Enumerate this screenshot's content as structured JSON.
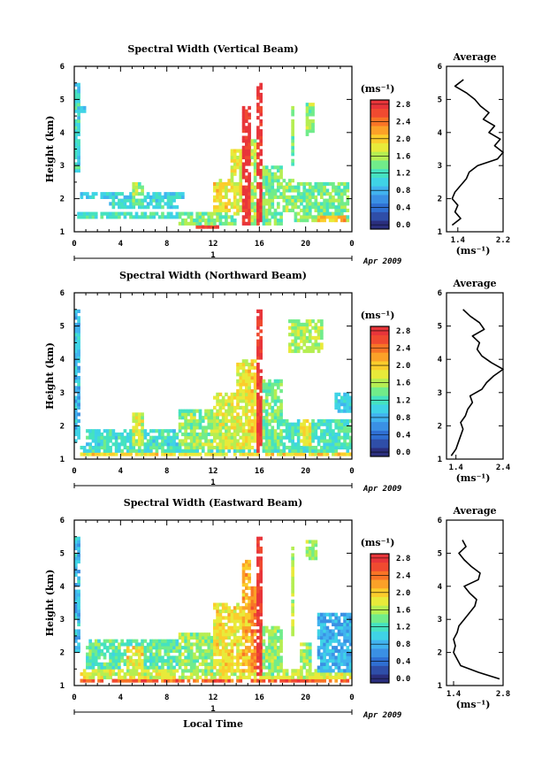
{
  "common": {
    "unit": "(ms⁻¹)",
    "avg_title": "Average",
    "y_axis_label": "Height (km)",
    "x_axis_label": "Local Time",
    "date_label": "Apr 2009",
    "day_label": "1"
  },
  "colorbar": {
    "ticks": [
      "0.0",
      "0.4",
      "0.8",
      "1.2",
      "1.6",
      "2.0",
      "2.4",
      "2.8"
    ],
    "colors": [
      "#2b2f7e",
      "#2f4ea8",
      "#2f6fd2",
      "#3a90e4",
      "#41b3ef",
      "#3fd3e6",
      "#45e2c0",
      "#71ec8a",
      "#b5ee52",
      "#e8ea3a",
      "#fbcd2c",
      "#fba128",
      "#f87426",
      "#f04a30",
      "#e8353a"
    ]
  },
  "chart_data": [
    {
      "type": "heatmap",
      "title": "Spectral Width (Vertical Beam)",
      "ylabel": "Height (km)",
      "xlabel": "",
      "xlim": [
        0,
        24
      ],
      "ylim": [
        1,
        6
      ],
      "x_ticks": [
        "0",
        "4",
        "8",
        "12",
        "16",
        "20",
        "0"
      ],
      "y_ticks": [
        "1",
        "2",
        "3",
        "4",
        "5",
        "6"
      ],
      "colorbar_ticks": [
        "0.0",
        "0.4",
        "0.8",
        "1.2",
        "1.6",
        "2.0",
        "2.4",
        "2.8"
      ],
      "features": [
        {
          "t0": 0.0,
          "t1": 0.6,
          "h0": 2.8,
          "h1": 5.5,
          "v": 1.2
        },
        {
          "t0": 0.2,
          "t1": 0.9,
          "h0": 4.6,
          "h1": 4.8,
          "v": 1.0
        },
        {
          "t0": 0.5,
          "t1": 9.5,
          "h0": 2.05,
          "h1": 2.25,
          "v": 1.1
        },
        {
          "t0": 0.3,
          "t1": 9.0,
          "h0": 1.4,
          "h1": 1.6,
          "v": 1.3
        },
        {
          "t0": 3.0,
          "t1": 9.0,
          "h0": 1.7,
          "h1": 2.0,
          "v": 1.2
        },
        {
          "t0": 5.0,
          "t1": 6.0,
          "h0": 1.8,
          "h1": 2.5,
          "v": 1.6
        },
        {
          "t0": 9.0,
          "t1": 14.0,
          "h0": 1.2,
          "h1": 1.6,
          "v": 1.5
        },
        {
          "t0": 10.5,
          "t1": 13.0,
          "h0": 1.15,
          "h1": 1.25,
          "v": 2.8
        },
        {
          "t0": 12.0,
          "t1": 14.5,
          "h0": 1.6,
          "h1": 2.6,
          "v": 2.0
        },
        {
          "t0": 13.5,
          "t1": 15.0,
          "h0": 1.5,
          "h1": 3.5,
          "v": 1.9
        },
        {
          "t0": 14.5,
          "t1": 15.2,
          "h0": 1.2,
          "h1": 4.8,
          "v": 2.9
        },
        {
          "t0": 15.2,
          "t1": 15.8,
          "h0": 1.2,
          "h1": 3.8,
          "v": 1.7
        },
        {
          "t0": 15.8,
          "t1": 16.3,
          "h0": 1.2,
          "h1": 5.5,
          "v": 2.9
        },
        {
          "t0": 16.3,
          "t1": 18.0,
          "h0": 1.2,
          "h1": 3.0,
          "v": 1.5
        },
        {
          "t0": 18.0,
          "t1": 19.0,
          "h0": 1.6,
          "h1": 2.6,
          "v": 1.6
        },
        {
          "t0": 18.7,
          "t1": 19.1,
          "h0": 3.0,
          "h1": 4.8,
          "v": 1.5
        },
        {
          "t0": 19.0,
          "t1": 23.8,
          "h0": 1.3,
          "h1": 2.5,
          "v": 1.5
        },
        {
          "t0": 20.0,
          "t1": 20.8,
          "h0": 3.9,
          "h1": 4.9,
          "v": 1.6
        },
        {
          "t0": 21.0,
          "t1": 23.5,
          "h0": 1.3,
          "h1": 1.5,
          "v": 2.2
        }
      ],
      "average": {
        "title": "Average",
        "xlabel": "(ms⁻¹)",
        "xlim": [
          1.2,
          2.2
        ],
        "x_ticks": [
          "1.4",
          "2.2"
        ],
        "y_ticks": [
          "1",
          "2",
          "3",
          "4",
          "5",
          "6"
        ],
        "heights": [
          1.2,
          1.4,
          1.6,
          1.8,
          2.0,
          2.2,
          2.4,
          2.6,
          2.8,
          3.0,
          3.2,
          3.4,
          3.6,
          3.8,
          4.0,
          4.2,
          4.4,
          4.6,
          4.8,
          5.0,
          5.2,
          5.4,
          5.6
        ],
        "values": [
          1.3,
          1.45,
          1.35,
          1.4,
          1.3,
          1.35,
          1.45,
          1.55,
          1.6,
          1.75,
          2.1,
          2.2,
          2.05,
          2.15,
          1.95,
          2.05,
          1.85,
          1.95,
          1.8,
          1.7,
          1.55,
          1.35,
          1.5
        ]
      }
    },
    {
      "type": "heatmap",
      "title": "Spectral Width (Northward Beam)",
      "ylabel": "Height (km)",
      "xlabel": "",
      "xlim": [
        0,
        24
      ],
      "ylim": [
        1,
        6
      ],
      "x_ticks": [
        "0",
        "4",
        "8",
        "12",
        "16",
        "20",
        "0"
      ],
      "y_ticks": [
        "1",
        "2",
        "3",
        "4",
        "5",
        "6"
      ],
      "colorbar_ticks": [
        "0.0",
        "0.4",
        "0.8",
        "1.2",
        "1.6",
        "2.0",
        "2.4",
        "2.8"
      ],
      "features": [
        {
          "t0": 0.0,
          "t1": 0.6,
          "h0": 1.5,
          "h1": 5.5,
          "v": 1.0
        },
        {
          "t0": 0.5,
          "t1": 24.0,
          "h0": 1.2,
          "h1": 1.4,
          "v": 1.3
        },
        {
          "t0": 0.5,
          "t1": 24.0,
          "h0": 1.1,
          "h1": 1.2,
          "v": 2.0
        },
        {
          "t0": 1.0,
          "t1": 9.0,
          "h0": 1.4,
          "h1": 1.9,
          "v": 1.2
        },
        {
          "t0": 5.0,
          "t1": 6.0,
          "h0": 1.4,
          "h1": 2.4,
          "v": 1.8
        },
        {
          "t0": 9.0,
          "t1": 13.0,
          "h0": 1.3,
          "h1": 2.5,
          "v": 1.6
        },
        {
          "t0": 12.0,
          "t1": 14.5,
          "h0": 1.3,
          "h1": 3.0,
          "v": 1.8
        },
        {
          "t0": 14.0,
          "t1": 15.0,
          "h0": 1.3,
          "h1": 4.0,
          "v": 1.9
        },
        {
          "t0": 15.0,
          "t1": 15.8,
          "h0": 1.3,
          "h1": 4.0,
          "v": 2.0
        },
        {
          "t0": 15.8,
          "t1": 16.3,
          "h0": 1.2,
          "h1": 5.5,
          "v": 2.9
        },
        {
          "t0": 16.3,
          "t1": 18.0,
          "h0": 1.3,
          "h1": 3.4,
          "v": 1.5
        },
        {
          "t0": 18.0,
          "t1": 24.0,
          "h0": 1.3,
          "h1": 2.2,
          "v": 1.3
        },
        {
          "t0": 19.5,
          "t1": 20.5,
          "h0": 1.4,
          "h1": 2.2,
          "v": 1.9
        },
        {
          "t0": 18.5,
          "t1": 21.5,
          "h0": 4.2,
          "h1": 5.2,
          "v": 1.7
        },
        {
          "t0": 22.5,
          "t1": 24.0,
          "h0": 2.4,
          "h1": 3.0,
          "v": 1.1
        }
      ],
      "average": {
        "title": "Average",
        "xlabel": "(ms⁻¹)",
        "xlim": [
          1.2,
          2.4
        ],
        "x_ticks": [
          "1.4",
          "2.4"
        ],
        "y_ticks": [
          "1",
          "2",
          "3",
          "4",
          "5",
          "6"
        ],
        "heights": [
          1.1,
          1.3,
          1.5,
          1.7,
          1.9,
          2.1,
          2.3,
          2.5,
          2.7,
          2.9,
          3.1,
          3.3,
          3.5,
          3.7,
          3.9,
          4.1,
          4.3,
          4.5,
          4.7,
          4.9,
          5.1,
          5.3,
          5.5
        ],
        "values": [
          1.3,
          1.4,
          1.45,
          1.5,
          1.55,
          1.5,
          1.6,
          1.65,
          1.75,
          1.7,
          1.95,
          2.05,
          2.2,
          2.4,
          2.15,
          1.95,
          1.85,
          1.9,
          1.75,
          2.0,
          1.9,
          1.7,
          1.55
        ]
      }
    },
    {
      "type": "heatmap",
      "title": "Spectral Width (Eastward Beam)",
      "ylabel": "Height (km)",
      "xlabel": "Local Time",
      "xlim": [
        0,
        24
      ],
      "ylim": [
        1,
        6
      ],
      "x_ticks": [
        "0",
        "4",
        "8",
        "12",
        "16",
        "20",
        "0"
      ],
      "y_ticks": [
        "1",
        "2",
        "3",
        "4",
        "5",
        "6"
      ],
      "colorbar_ticks": [
        "0.0",
        "0.4",
        "0.8",
        "1.2",
        "1.6",
        "2.0",
        "2.4",
        "2.8"
      ],
      "features": [
        {
          "t0": 0.0,
          "t1": 0.6,
          "h0": 2.0,
          "h1": 5.5,
          "v": 1.0
        },
        {
          "t0": 0.5,
          "t1": 24.0,
          "h0": 1.1,
          "h1": 1.25,
          "v": 2.6
        },
        {
          "t0": 0.5,
          "t1": 24.0,
          "h0": 1.25,
          "h1": 1.5,
          "v": 1.8
        },
        {
          "t0": 1.0,
          "t1": 9.0,
          "h0": 1.5,
          "h1": 2.4,
          "v": 1.4
        },
        {
          "t0": 4.5,
          "t1": 6.0,
          "h0": 1.5,
          "h1": 2.2,
          "v": 2.0
        },
        {
          "t0": 9.0,
          "t1": 13.0,
          "h0": 1.4,
          "h1": 2.6,
          "v": 1.6
        },
        {
          "t0": 12.0,
          "t1": 14.5,
          "h0": 1.4,
          "h1": 3.5,
          "v": 2.0
        },
        {
          "t0": 14.5,
          "t1": 15.2,
          "h0": 1.4,
          "h1": 4.8,
          "v": 2.2
        },
        {
          "t0": 15.2,
          "t1": 15.8,
          "h0": 1.4,
          "h1": 4.0,
          "v": 2.4
        },
        {
          "t0": 15.8,
          "t1": 16.3,
          "h0": 1.3,
          "h1": 5.5,
          "v": 2.9
        },
        {
          "t0": 16.3,
          "t1": 18.0,
          "h0": 1.3,
          "h1": 2.8,
          "v": 1.6
        },
        {
          "t0": 18.7,
          "t1": 19.1,
          "h0": 2.5,
          "h1": 5.2,
          "v": 1.7
        },
        {
          "t0": 19.5,
          "t1": 20.5,
          "h0": 1.4,
          "h1": 2.3,
          "v": 1.6
        },
        {
          "t0": 20.0,
          "t1": 21.0,
          "h0": 4.8,
          "h1": 5.4,
          "v": 1.6
        },
        {
          "t0": 21.0,
          "t1": 24.0,
          "h0": 1.4,
          "h1": 3.2,
          "v": 0.9
        }
      ],
      "average": {
        "title": "Average",
        "xlabel": "(ms⁻¹)",
        "xlim": [
          1.2,
          2.8
        ],
        "x_ticks": [
          "1.4",
          "2.8"
        ],
        "y_ticks": [
          "1",
          "2",
          "3",
          "4",
          "5",
          "6"
        ],
        "heights": [
          1.2,
          1.4,
          1.6,
          1.8,
          2.0,
          2.2,
          2.4,
          2.6,
          2.8,
          3.0,
          3.2,
          3.4,
          3.6,
          3.8,
          4.0,
          4.2,
          4.4,
          4.6,
          4.8,
          5.0,
          5.2,
          5.4
        ],
        "values": [
          2.7,
          2.1,
          1.6,
          1.5,
          1.4,
          1.45,
          1.4,
          1.5,
          1.55,
          1.7,
          1.85,
          2.0,
          2.05,
          1.85,
          1.7,
          2.1,
          2.15,
          1.9,
          1.7,
          1.55,
          1.75,
          1.65
        ]
      }
    }
  ]
}
